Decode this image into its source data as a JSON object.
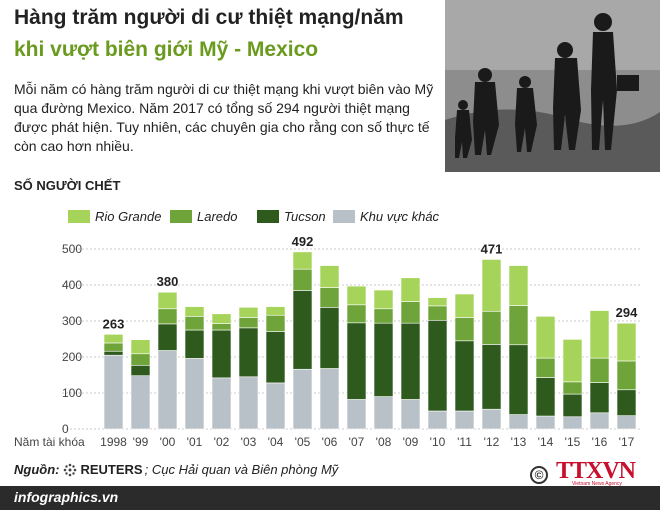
{
  "header": {
    "title_line1": "Hàng trăm người di cư thiệt mạng/năm",
    "title_line2": "khi vượt biên giới Mỹ - Mexico",
    "description": "Mỗi năm có hàng trăm người di cư thiệt mạng khi vượt biên vào Mỹ qua đường Mexico. Năm 2017 có tổng số 294 người thiệt mạng được phát hiện. Tuy nhiên, các chuyên gia cho rằng con số thực tế còn cao hơn nhiều."
  },
  "chart_data": {
    "type": "bar",
    "stacked": true,
    "ylabel": "SỐ NGƯỜI CHẾT",
    "xlabel": "Năm tài khóa",
    "ylim": [
      0,
      500
    ],
    "yticks": [
      0,
      100,
      200,
      300,
      400,
      500
    ],
    "categories": [
      "1998",
      "'99",
      "'00",
      "'01",
      "'02",
      "'03",
      "'04",
      "'05",
      "'06",
      "'07",
      "'08",
      "'09",
      "'10",
      "'11",
      "'12",
      "'13",
      "'14",
      "'15",
      "'16",
      "'17"
    ],
    "series": [
      {
        "name": "Khu vực khác",
        "color": "#b8c1c8",
        "values": [
          205,
          148,
          218,
          196,
          142,
          145,
          128,
          166,
          168,
          82,
          90,
          82,
          50,
          50,
          55,
          40,
          36,
          34,
          45,
          37
        ]
      },
      {
        "name": "Tucson",
        "color": "#2f5a1e",
        "values": [
          11,
          29,
          74,
          79,
          133,
          136,
          143,
          219,
          170,
          213,
          204,
          212,
          252,
          195,
          180,
          194,
          107,
          63,
          84,
          72
        ]
      },
      {
        "name": "Laredo",
        "color": "#6ea43a",
        "values": [
          23,
          32,
          42,
          38,
          18,
          29,
          45,
          59,
          55,
          50,
          40,
          60,
          40,
          65,
          92,
          109,
          54,
          34,
          68,
          80
        ]
      },
      {
        "name": "Rio Grande",
        "color": "#a6d45a",
        "values": [
          24,
          39,
          46,
          27,
          27,
          28,
          24,
          48,
          61,
          52,
          52,
          66,
          23,
          65,
          144,
          111,
          116,
          118,
          132,
          105
        ]
      }
    ],
    "totals_labeled": {
      "0": "263",
      "2": "380",
      "7": "492",
      "14": "471",
      "19": "294"
    },
    "legend_order": [
      "Rio Grande",
      "Laredo",
      "Tucson",
      "Khu vực khác"
    ]
  },
  "footer": {
    "source_label": "Nguồn:",
    "source_reuters": "REUTERS",
    "source_rest": "; Cục Hải quan và Biên phòng Mỹ",
    "site": "infographics.vn",
    "copyright": "©",
    "agency": "TTXVN",
    "agency_sub": "Vietnam News Agency"
  }
}
